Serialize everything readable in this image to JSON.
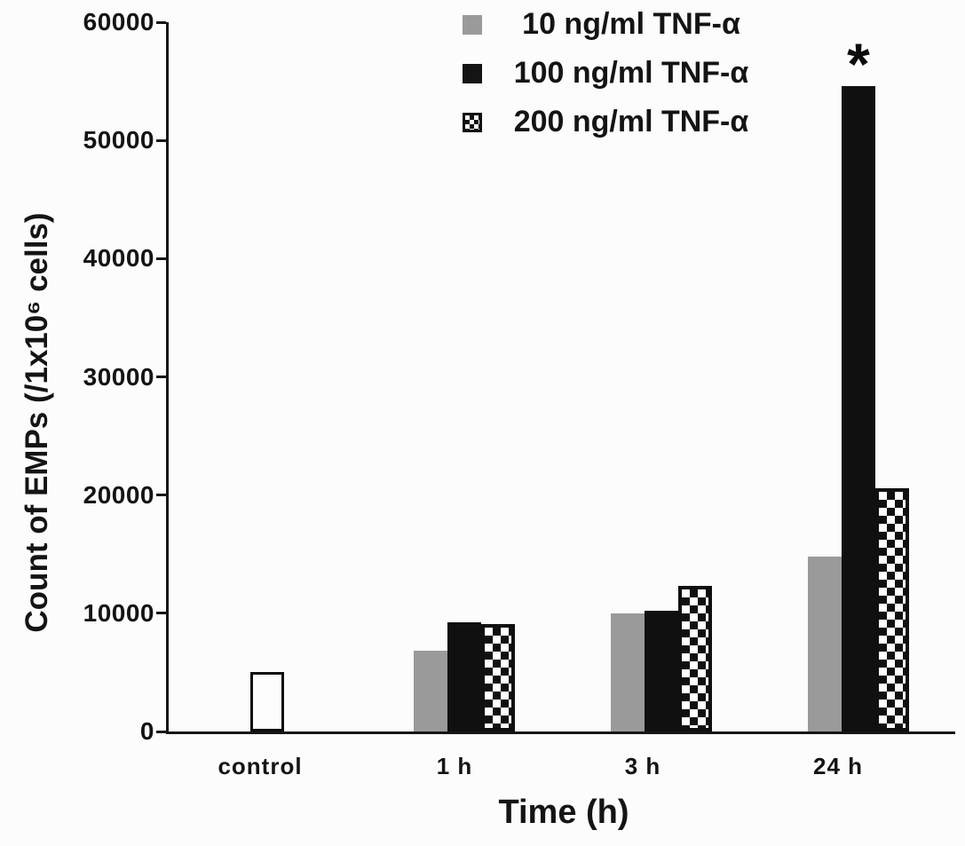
{
  "colors": {
    "background": "#fcfcfc",
    "axis": "#161616",
    "bar_gray": "#9a9a9a",
    "bar_black": "#101010",
    "bar_white_fill": "#fdfdfd",
    "text": "#141414"
  },
  "chart_data": {
    "type": "bar",
    "title": "",
    "xlabel": "Time (h)",
    "ylabel": "Count of EMPs (/1x10⁶ cells)",
    "ylim": [
      0,
      60000
    ],
    "ytick_labels": [
      "0",
      "10000",
      "20000",
      "30000",
      "40000",
      "50000",
      "60000"
    ],
    "grid": false,
    "legend_position": "top-center",
    "categories": [
      "control",
      "1 h",
      "3 h",
      "24 h"
    ],
    "series": [
      {
        "name": "control",
        "style": "white",
        "values": [
          5000,
          null,
          null,
          null
        ]
      },
      {
        "name": "10 ng/ml TNF-α",
        "style": "gray",
        "values": [
          null,
          6800,
          10000,
          14800
        ]
      },
      {
        "name": "100 ng/ml TNF-α",
        "style": "black",
        "values": [
          null,
          9200,
          10200,
          54600
        ]
      },
      {
        "name": "200 ng/ml TNF-α",
        "style": "checker",
        "values": [
          null,
          9100,
          12300,
          20600
        ]
      }
    ],
    "legend": [
      {
        "label": "10 ng/ml TNF-α",
        "swatch": "gray"
      },
      {
        "label": "100 ng/ml TNF-α",
        "swatch": "black"
      },
      {
        "label": "200 ng/ml TNF-α",
        "swatch": "checker"
      }
    ],
    "annotations": [
      {
        "text": "*",
        "category": "24 h",
        "series": "100 ng/ml TNF-α"
      }
    ]
  }
}
